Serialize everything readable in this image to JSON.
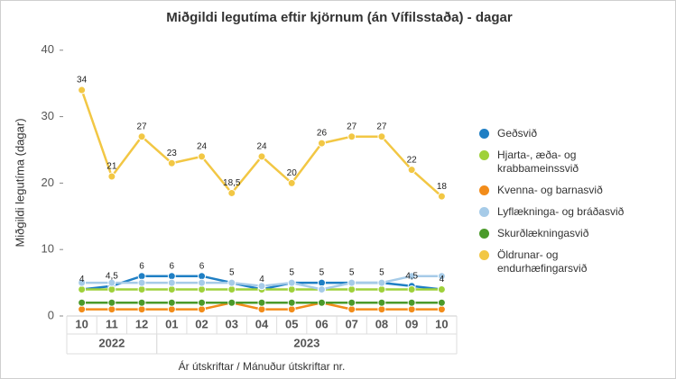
{
  "chart_data": {
    "type": "line",
    "title": "Miðgildi legutíma eftir kjörnum (án Vífilsstaða) - dagar",
    "y_label": "Miðgildi legutíma (dagar)",
    "x_label": "Ár útskriftar / Mánuður útskriftar nr.",
    "categories": [
      "10",
      "11",
      "12",
      "01",
      "02",
      "03",
      "04",
      "05",
      "06",
      "07",
      "08",
      "09",
      "10"
    ],
    "category_groups": [
      {
        "label": "2022",
        "count": 3
      },
      {
        "label": "2023",
        "count": 10
      }
    ],
    "ylim": [
      0,
      42
    ],
    "yticks": [
      0,
      10,
      20,
      30,
      40
    ],
    "grid": false,
    "legend": "right",
    "series": [
      {
        "name": "Geðsvið",
        "color": "#1f7fc4",
        "values": [
          4,
          4.5,
          6,
          6,
          6,
          5,
          4,
          5,
          5,
          5,
          5,
          4.5,
          4
        ],
        "value_labels": [
          "4",
          "4,5",
          "6",
          "6",
          "6",
          "5",
          "4",
          "5",
          "5",
          "5",
          "5",
          "4,5",
          "4"
        ]
      },
      {
        "name": "Hjarta-, æða- og krabbameinssvið",
        "color": "#9fd13a",
        "values": [
          4,
          4,
          4,
          4,
          4,
          4,
          4,
          4,
          4,
          4,
          4,
          4,
          4
        ]
      },
      {
        "name": "Kvenna- og barnasvið",
        "color": "#f28c1a",
        "values": [
          1,
          1,
          1,
          1,
          1,
          2,
          1,
          1,
          2,
          1,
          1,
          1,
          1
        ]
      },
      {
        "name": "Lyflækninga- og bráðasvið",
        "color": "#a6cbe8",
        "values": [
          5,
          5,
          5,
          5,
          5,
          5,
          4.5,
          5,
          4,
          5,
          5,
          6,
          6
        ]
      },
      {
        "name": "Skurðlækningasvið",
        "color": "#4a9a2a",
        "values": [
          2,
          2,
          2,
          2,
          2,
          2,
          2,
          2,
          2,
          2,
          2,
          2,
          2
        ]
      },
      {
        "name": "Öldrunar- og endurhæfingarsvið",
        "color": "#f2c744",
        "values": [
          34,
          21,
          27,
          23,
          24,
          18.5,
          24,
          20,
          26,
          27,
          27,
          22,
          18
        ],
        "value_labels": [
          "34",
          "21",
          "27",
          "23",
          "24",
          "18,5",
          "24",
          "20",
          "26",
          "27",
          "27",
          "22",
          "18"
        ]
      }
    ]
  }
}
